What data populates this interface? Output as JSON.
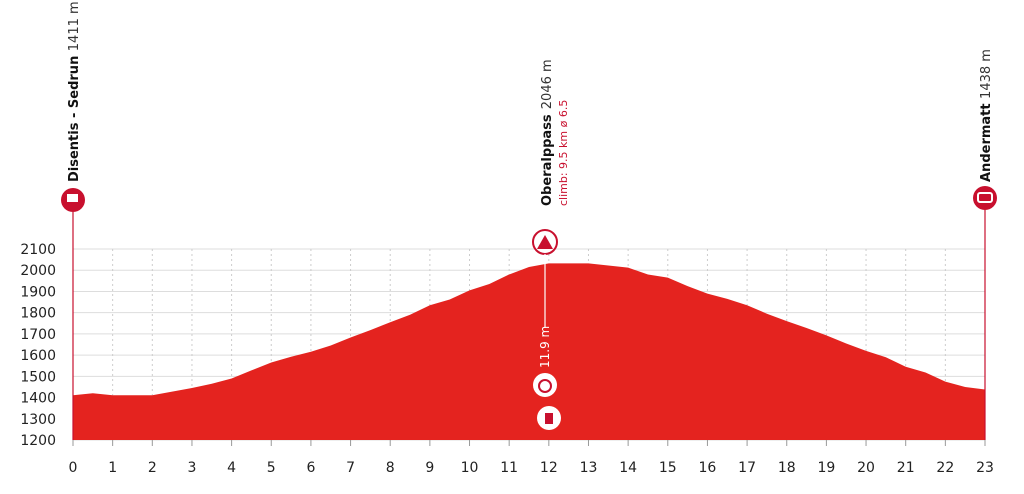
{
  "chart_data": {
    "type": "area",
    "color": "#e4231f",
    "x": [
      0,
      0.5,
      1,
      2,
      2.5,
      3,
      3.5,
      4,
      4.5,
      5,
      5.5,
      6,
      6.5,
      7,
      7.5,
      8,
      8.5,
      9,
      9.5,
      10,
      10.5,
      11,
      11.5,
      12,
      13,
      13.5,
      14,
      14.5,
      15,
      15.5,
      16,
      16.5,
      17,
      17.5,
      18,
      18.5,
      19,
      19.5,
      20,
      20.5,
      21,
      21.5,
      22,
      22.5,
      23
    ],
    "values": [
      1411,
      1420,
      1411,
      1411,
      1428,
      1445,
      1465,
      1490,
      1528,
      1565,
      1592,
      1616,
      1645,
      1683,
      1718,
      1755,
      1790,
      1835,
      1862,
      1905,
      1935,
      1980,
      2015,
      2032,
      2032,
      2022,
      2012,
      1980,
      1965,
      1925,
      1890,
      1865,
      1835,
      1795,
      1760,
      1728,
      1693,
      1655,
      1620,
      1590,
      1545,
      1518,
      1475,
      1450,
      1438
    ],
    "xlim": [
      0,
      23
    ],
    "ylim": [
      1200,
      2100
    ],
    "xticks": [
      0,
      1,
      2,
      3,
      4,
      5,
      6,
      7,
      8,
      9,
      10,
      11,
      12,
      13,
      14,
      15,
      16,
      17,
      18,
      19,
      20,
      21,
      22,
      23
    ],
    "yticks": [
      1200,
      1300,
      1400,
      1500,
      1600,
      1700,
      1800,
      1900,
      2000,
      2100
    ],
    "grid": true,
    "annotations": {
      "start": {
        "name": "Disentis - Sedrun",
        "elevation": "1411 m"
      },
      "climb": {
        "name": "Oberalppass",
        "elevation": "2046 m",
        "detail": "climb: 9.5 km ø 6.5"
      },
      "finish": {
        "name": "Andermatt",
        "elevation": "1438 m"
      },
      "checkpoint": "11.9 m"
    }
  }
}
